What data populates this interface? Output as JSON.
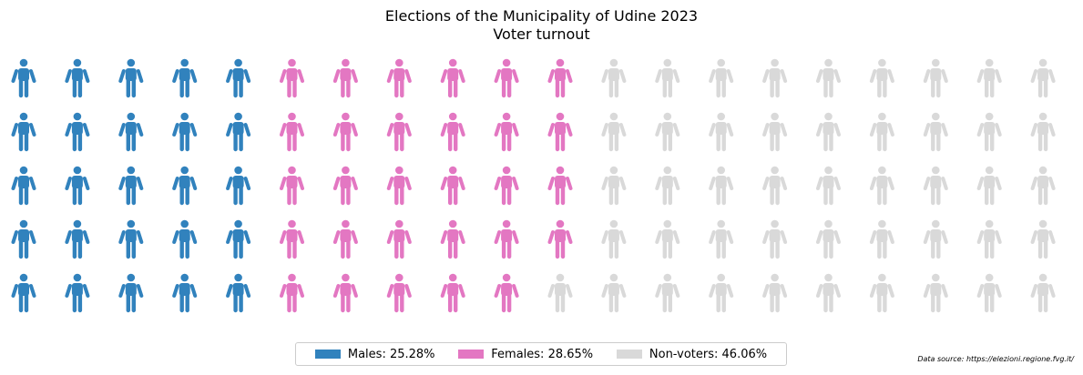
{
  "chart_data": {
    "type": "waffle",
    "title": "Elections of the Municipality of Udine 2023",
    "subtitle": "Voter turnout",
    "rows": 5,
    "columns": 20,
    "categories": [
      {
        "name": "Males",
        "percent": 25.28,
        "count": 25,
        "color": "#3182bd",
        "legend_label": "Males: 25.28%"
      },
      {
        "name": "Females",
        "percent": 28.65,
        "count": 29,
        "color": "#e377c2",
        "legend_label": "Females: 28.65%"
      },
      {
        "name": "Non-voters",
        "percent": 46.06,
        "count": 46,
        "color": "#d9d9d9",
        "legend_label": "Non-voters: 46.06%"
      }
    ],
    "fill_order": "column-major, top to bottom, left to right",
    "icon": "person-icon",
    "legend_placement": "bottom-center",
    "source": "Data source: https://elezioni.regione.fvg.it/"
  }
}
